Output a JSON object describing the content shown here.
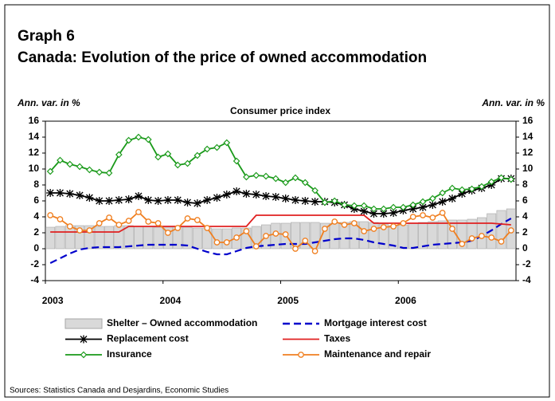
{
  "chart_data": {
    "type": "combo",
    "title": "Graph 6",
    "subtitle": "Canada: Evolution of the price of owned accommodation",
    "ylabel": "Ann. var. in %",
    "y2label": "Ann. var. in %",
    "plot_title": "Consumer price index",
    "source": "Sources: Statistics Canada and Desjardins, Economic Studies",
    "categories": [
      "2003",
      null,
      null,
      null,
      null,
      null,
      null,
      null,
      null,
      null,
      null,
      null,
      "2004",
      null,
      null,
      null,
      null,
      null,
      null,
      null,
      null,
      null,
      null,
      null,
      "2005",
      null,
      null,
      null,
      null,
      null,
      null,
      null,
      null,
      null,
      null,
      null,
      "2006",
      null,
      null,
      null,
      null,
      null,
      null,
      null,
      null,
      null,
      null,
      null
    ],
    "ylim": [
      -4,
      16
    ],
    "yticks": [
      -4,
      -2,
      0,
      2,
      4,
      6,
      8,
      10,
      12,
      14,
      16
    ],
    "y2lim": [
      -4,
      16
    ],
    "y2ticks": [
      -4,
      -2,
      0,
      2,
      4,
      6,
      8,
      10,
      12,
      14,
      16
    ],
    "series": [
      {
        "name": "Shelter – Owned accommodation",
        "kind": "bar",
        "color": "#d9d9d9",
        "values": [
          2.7,
          2.8,
          2.9,
          2.9,
          2.9,
          2.8,
          2.8,
          2.9,
          2.9,
          2.8,
          2.8,
          2.7,
          2.7,
          2.7,
          2.7,
          2.6,
          2.6,
          2.5,
          2.5,
          2.6,
          2.6,
          2.8,
          3.0,
          3.2,
          3.2,
          3.3,
          3.3,
          3.3,
          3.2,
          3.2,
          3.3,
          3.4,
          3.4,
          3.3,
          3.1,
          2.9,
          3.0,
          3.2,
          3.3,
          3.4,
          3.5,
          3.6,
          3.6,
          3.7,
          3.9,
          4.4,
          4.8,
          5.0
        ]
      },
      {
        "name": "Mortgage interest cost",
        "kind": "line",
        "dash": true,
        "color": "#0000cc",
        "values": [
          -1.8,
          -1.2,
          -0.6,
          -0.1,
          0.1,
          0.2,
          0.2,
          0.2,
          0.3,
          0.4,
          0.5,
          0.5,
          0.5,
          0.5,
          0.4,
          0.0,
          -0.4,
          -0.7,
          -0.7,
          -0.3,
          0.1,
          0.3,
          0.4,
          0.5,
          0.6,
          0.6,
          0.6,
          0.8,
          1.0,
          1.2,
          1.3,
          1.3,
          1.1,
          0.8,
          0.6,
          0.4,
          0.1,
          0.1,
          0.3,
          0.5,
          0.6,
          0.7,
          0.8,
          1.0,
          1.6,
          2.3,
          3.1,
          3.8
        ]
      },
      {
        "name": "Replacement cost",
        "kind": "line",
        "marker": "star",
        "color": "#000000",
        "values": [
          7.0,
          7.0,
          6.9,
          6.7,
          6.4,
          6.0,
          6.0,
          6.1,
          6.2,
          6.6,
          6.1,
          6.0,
          6.1,
          6.1,
          5.8,
          5.7,
          6.1,
          6.4,
          6.8,
          7.2,
          6.9,
          6.8,
          6.6,
          6.5,
          6.3,
          6.1,
          6.0,
          5.9,
          5.9,
          5.8,
          5.5,
          5.0,
          4.7,
          4.4,
          4.4,
          4.5,
          4.8,
          5.0,
          5.2,
          5.5,
          5.9,
          6.3,
          6.9,
          7.3,
          7.6,
          8.0,
          8.8,
          8.8
        ]
      },
      {
        "name": "Taxes",
        "kind": "line",
        "color": "#e02020",
        "values": [
          2.1,
          2.1,
          2.1,
          2.1,
          2.1,
          2.1,
          2.1,
          2.1,
          2.8,
          2.8,
          2.8,
          2.8,
          2.8,
          2.8,
          2.8,
          2.8,
          2.8,
          2.8,
          2.8,
          2.8,
          2.8,
          4.2,
          4.2,
          4.2,
          4.2,
          4.2,
          4.2,
          4.2,
          4.2,
          4.2,
          4.2,
          4.2,
          4.2,
          3.2,
          3.2,
          3.2,
          3.2,
          3.2,
          3.2,
          3.2,
          3.2,
          3.2,
          3.2,
          3.2,
          3.2,
          3.2,
          3.1,
          3.0
        ]
      },
      {
        "name": "Insurance",
        "kind": "line",
        "marker": "diamond",
        "color": "#1a9a1a",
        "values": [
          9.7,
          11.1,
          10.6,
          10.3,
          9.9,
          9.6,
          9.5,
          11.8,
          13.6,
          14.0,
          13.7,
          11.5,
          11.9,
          10.5,
          10.7,
          11.7,
          12.5,
          12.7,
          13.3,
          11.0,
          9.0,
          9.2,
          9.1,
          8.8,
          8.3,
          8.9,
          8.3,
          7.3,
          5.8,
          6.0,
          5.5,
          5.4,
          5.4,
          5.0,
          5.0,
          5.2,
          5.2,
          5.5,
          5.9,
          6.3,
          7.0,
          7.6,
          7.4,
          7.5,
          7.8,
          8.4,
          8.9,
          8.7
        ]
      },
      {
        "name": "Maintenance and repair",
        "kind": "line",
        "marker": "circle",
        "color": "#f07f20",
        "values": [
          4.2,
          3.7,
          2.8,
          2.3,
          2.3,
          3.2,
          3.9,
          3.0,
          3.5,
          4.6,
          3.4,
          3.2,
          2.0,
          2.6,
          3.8,
          3.6,
          2.6,
          0.8,
          0.8,
          1.4,
          2.2,
          0.3,
          1.6,
          1.9,
          1.8,
          0.0,
          1.0,
          -0.3,
          2.5,
          3.4,
          3.0,
          3.2,
          2.2,
          2.5,
          2.7,
          2.8,
          3.2,
          4.0,
          4.2,
          3.9,
          4.5,
          2.5,
          0.6,
          1.3,
          1.6,
          1.4,
          0.9,
          2.3
        ]
      }
    ]
  }
}
